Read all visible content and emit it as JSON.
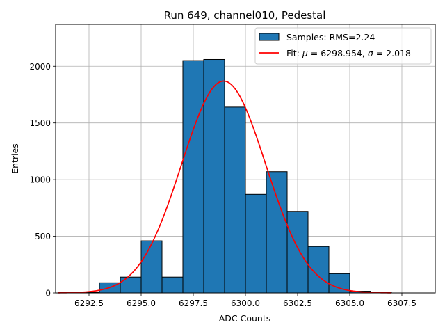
{
  "chart_data": {
    "type": "bar",
    "title": "Run 649, channel010, Pedestal",
    "xlabel": "ADC Counts",
    "ylabel": "Entries",
    "xlim": [
      6290.9,
      6309.1
    ],
    "ylim": [
      0,
      2370
    ],
    "grid": true,
    "legend_position": "upper right",
    "x_ticks": [
      6292.5,
      6295.0,
      6297.5,
      6300.0,
      6302.5,
      6305.0,
      6307.5
    ],
    "x_tick_labels": [
      "6292.5",
      "6295.0",
      "6297.5",
      "6300.0",
      "6302.5",
      "6305.0",
      "6307.5"
    ],
    "y_ticks": [
      0,
      500,
      1000,
      1500,
      2000
    ],
    "y_tick_labels": [
      "0",
      "500",
      "1000",
      "1500",
      "2000"
    ],
    "histogram": {
      "name": "Samples: RMS=2.24",
      "color": "#1f77b4",
      "edge_color": "#000000",
      "bins": [
        {
          "x0": 6292.0,
          "x1": 6293.0,
          "value": 5
        },
        {
          "x0": 6293.0,
          "x1": 6294.0,
          "value": 90
        },
        {
          "x0": 6294.0,
          "x1": 6295.0,
          "value": 140
        },
        {
          "x0": 6295.0,
          "x1": 6296.0,
          "value": 460
        },
        {
          "x0": 6296.0,
          "x1": 6297.0,
          "value": 140
        },
        {
          "x0": 6297.0,
          "x1": 6298.0,
          "value": 2050
        },
        {
          "x0": 6298.0,
          "x1": 6299.0,
          "value": 2060
        },
        {
          "x0": 6299.0,
          "x1": 6300.0,
          "value": 1640
        },
        {
          "x0": 6300.0,
          "x1": 6301.0,
          "value": 870
        },
        {
          "x0": 6301.0,
          "x1": 6302.0,
          "value": 1070
        },
        {
          "x0": 6302.0,
          "x1": 6303.0,
          "value": 720
        },
        {
          "x0": 6303.0,
          "x1": 6304.0,
          "value": 410
        },
        {
          "x0": 6304.0,
          "x1": 6305.0,
          "value": 170
        },
        {
          "x0": 6305.0,
          "x1": 6306.0,
          "value": 15
        },
        {
          "x0": 6306.0,
          "x1": 6307.0,
          "value": 3
        }
      ]
    },
    "fit": {
      "name_prefix": "Fit: ",
      "mu_symbol": "μ",
      "mu_text": " = 6298.954, ",
      "sigma_symbol": "σ",
      "sigma_text": " = 2.018",
      "color": "#ff0000",
      "mu": 6298.954,
      "sigma": 2.018,
      "amplitude": 1870,
      "x_range": [
        6291.0,
        6307.0
      ]
    }
  }
}
